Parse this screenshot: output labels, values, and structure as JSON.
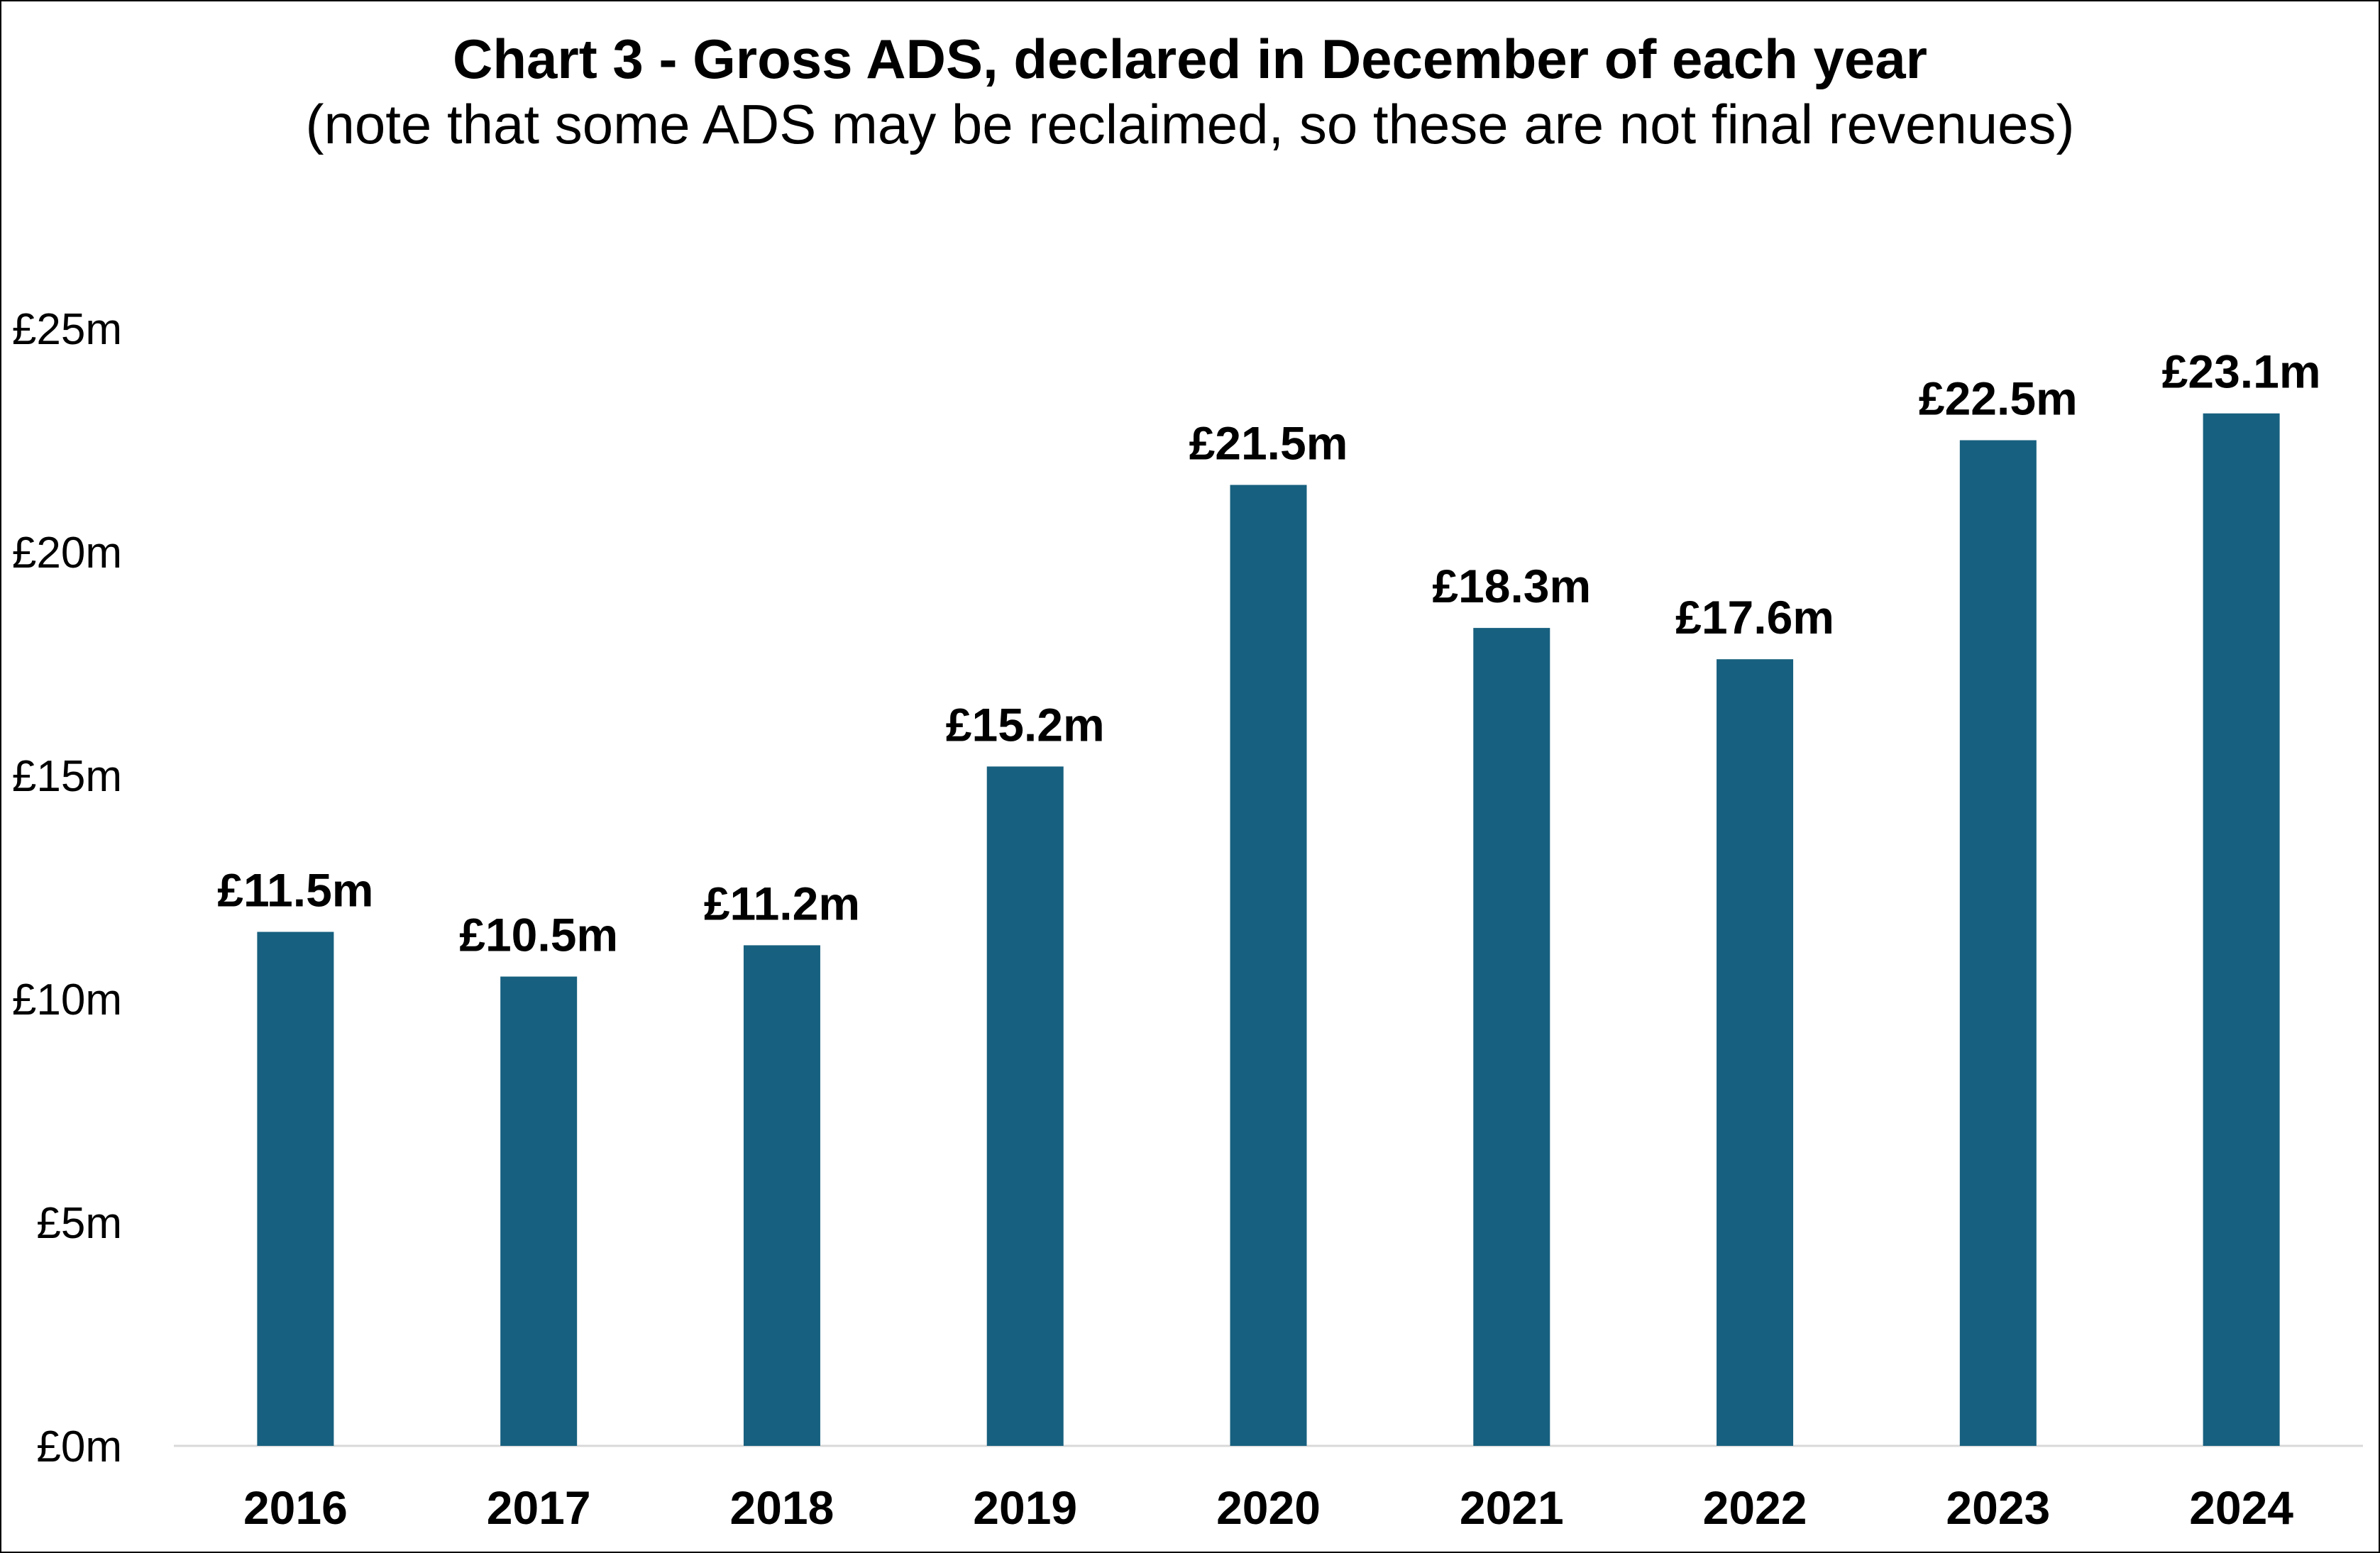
{
  "chart_data": {
    "type": "bar",
    "title": "Chart 3 - Gross ADS, declared in December of each year",
    "subtitle": "(note that some ADS may be reclaimed, so these are not final revenues)",
    "xlabel": "",
    "ylabel": "",
    "categories": [
      "2016",
      "2017",
      "2018",
      "2019",
      "2020",
      "2021",
      "2022",
      "2023",
      "2024"
    ],
    "values": [
      11.5,
      10.5,
      11.2,
      15.2,
      21.5,
      18.3,
      17.6,
      22.5,
      23.1
    ],
    "data_labels": [
      "£11.5m",
      "£10.5m",
      "£11.2m",
      "£15.2m",
      "£21.5m",
      "£18.3m",
      "£17.6m",
      "£22.5m",
      "£23.1m"
    ],
    "ylim": [
      0,
      25
    ],
    "yticks": [
      0,
      5,
      10,
      15,
      20,
      25
    ],
    "ytick_labels": [
      "£0m",
      "£5m",
      "£10m",
      "£15m",
      "£20m",
      "£25m"
    ],
    "grid": false,
    "legend": "none",
    "bar_color": "#17607f",
    "axis_color": "#d9d9d9"
  }
}
